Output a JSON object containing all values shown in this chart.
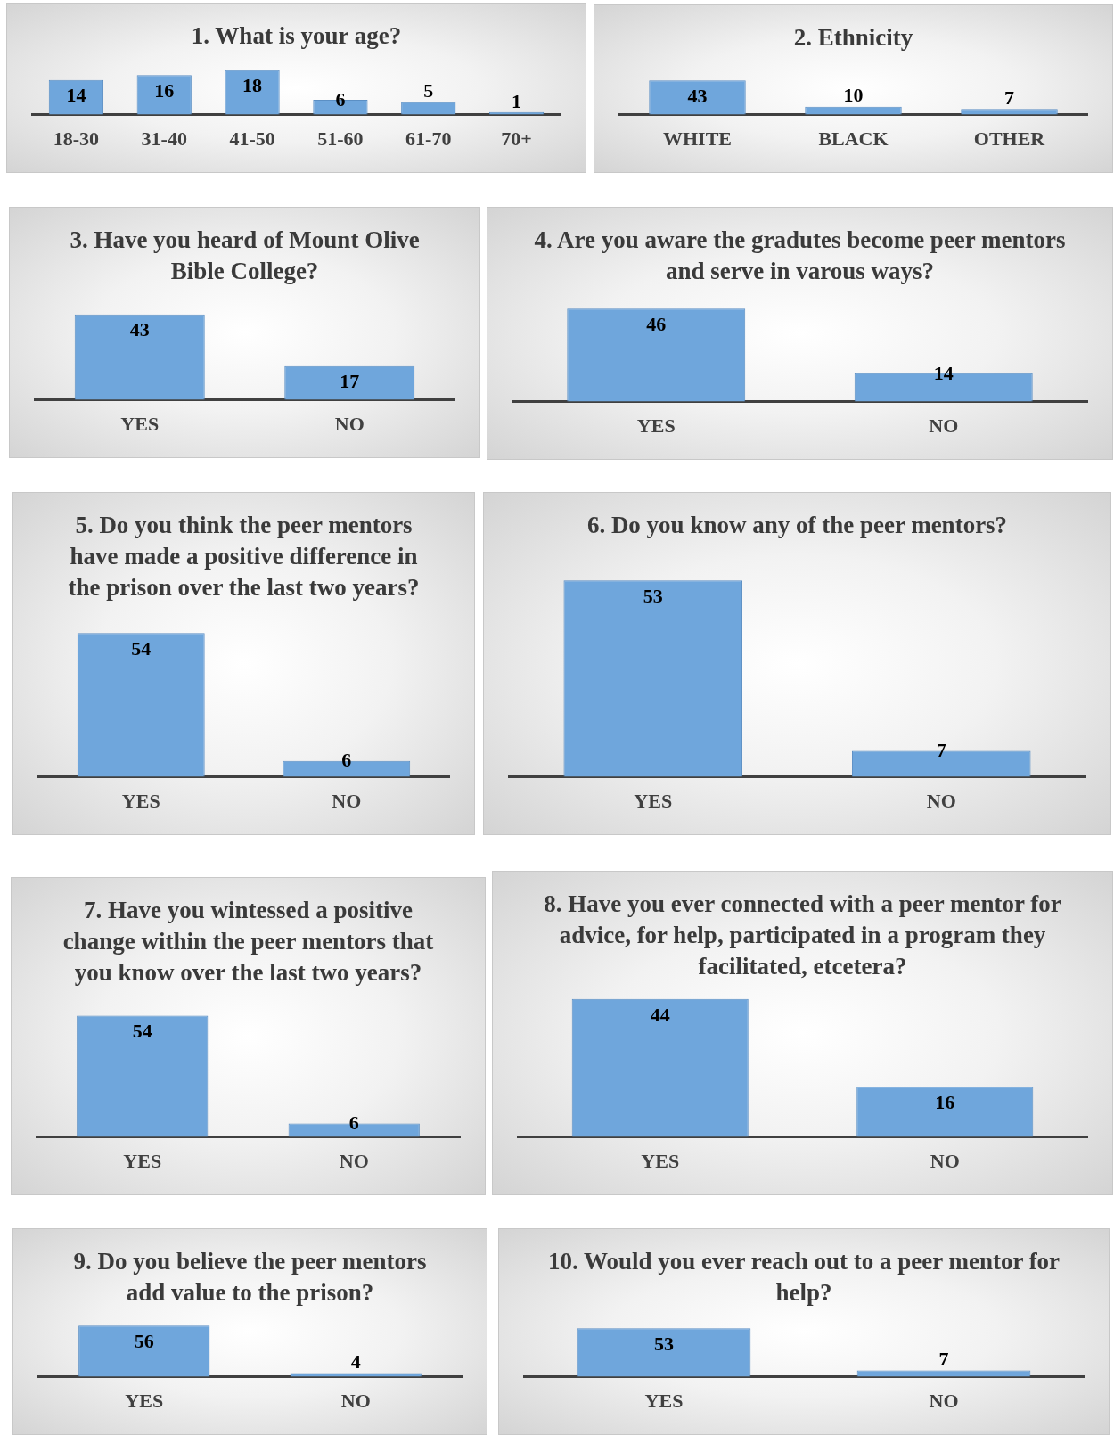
{
  "chart_data": [
    {
      "type": "bar",
      "title": "1. What is your age?",
      "categories": [
        "18-30",
        "31-40",
        "41-50",
        "51-60",
        "61-70",
        "70+"
      ],
      "values": [
        14,
        16,
        18,
        6,
        5,
        1
      ],
      "color": "#6fa6dc",
      "data_labels": true,
      "tick_labels": "x"
    },
    {
      "type": "bar",
      "title": "2. Ethnicity",
      "categories": [
        "WHITE",
        "BLACK",
        "OTHER"
      ],
      "values": [
        43,
        10,
        7
      ],
      "color": "#6fa6dc",
      "data_labels": true,
      "tick_labels": "x"
    },
    {
      "type": "bar",
      "title": "3. Have you heard of Mount Olive Bible College?",
      "categories": [
        "YES",
        "NO"
      ],
      "values": [
        43,
        17
      ],
      "color": "#6fa6dc",
      "data_labels": true,
      "tick_labels": "x"
    },
    {
      "type": "bar",
      "title": "4. Are you aware the gradutes become peer mentors and serve in varous ways?",
      "categories": [
        "YES",
        "NO"
      ],
      "values": [
        46,
        14
      ],
      "color": "#6fa6dc",
      "data_labels": true,
      "tick_labels": "x"
    },
    {
      "type": "bar",
      "title": "5. Do you think the peer mentors have made a positive difference in the prison over the last two years?",
      "categories": [
        "YES",
        "NO"
      ],
      "values": [
        54,
        6
      ],
      "color": "#6fa6dc",
      "data_labels": true,
      "tick_labels": "x"
    },
    {
      "type": "bar",
      "title": "6. Do you know any of the peer mentors?",
      "categories": [
        "YES",
        "NO"
      ],
      "values": [
        53,
        7
      ],
      "color": "#6fa6dc",
      "data_labels": true,
      "tick_labels": "x"
    },
    {
      "type": "bar",
      "title": "7. Have you wintessed a positive change within the peer mentors that you know over the last two years?",
      "categories": [
        "YES",
        "NO"
      ],
      "values": [
        54,
        6
      ],
      "color": "#6fa6dc",
      "data_labels": true,
      "tick_labels": "x"
    },
    {
      "type": "bar",
      "title": "8. Have you ever connected with a peer mentor for advice, for help, participated in a program they facilitated, etcetera?",
      "categories": [
        "YES",
        "NO"
      ],
      "values": [
        44,
        16
      ],
      "color": "#6fa6dc",
      "data_labels": true,
      "tick_labels": "x"
    },
    {
      "type": "bar",
      "title": "9. Do you believe the peer mentors add value to the prison?",
      "categories": [
        "YES",
        "NO"
      ],
      "values": [
        56,
        4
      ],
      "color": "#6fa6dc",
      "data_labels": true,
      "tick_labels": "x"
    },
    {
      "type": "bar",
      "title": "10. Would you ever reach out to a peer mentor for help?",
      "categories": [
        "YES",
        "NO"
      ],
      "values": [
        53,
        7
      ],
      "color": "#6fa6dc",
      "data_labels": true,
      "tick_labels": "x"
    }
  ]
}
